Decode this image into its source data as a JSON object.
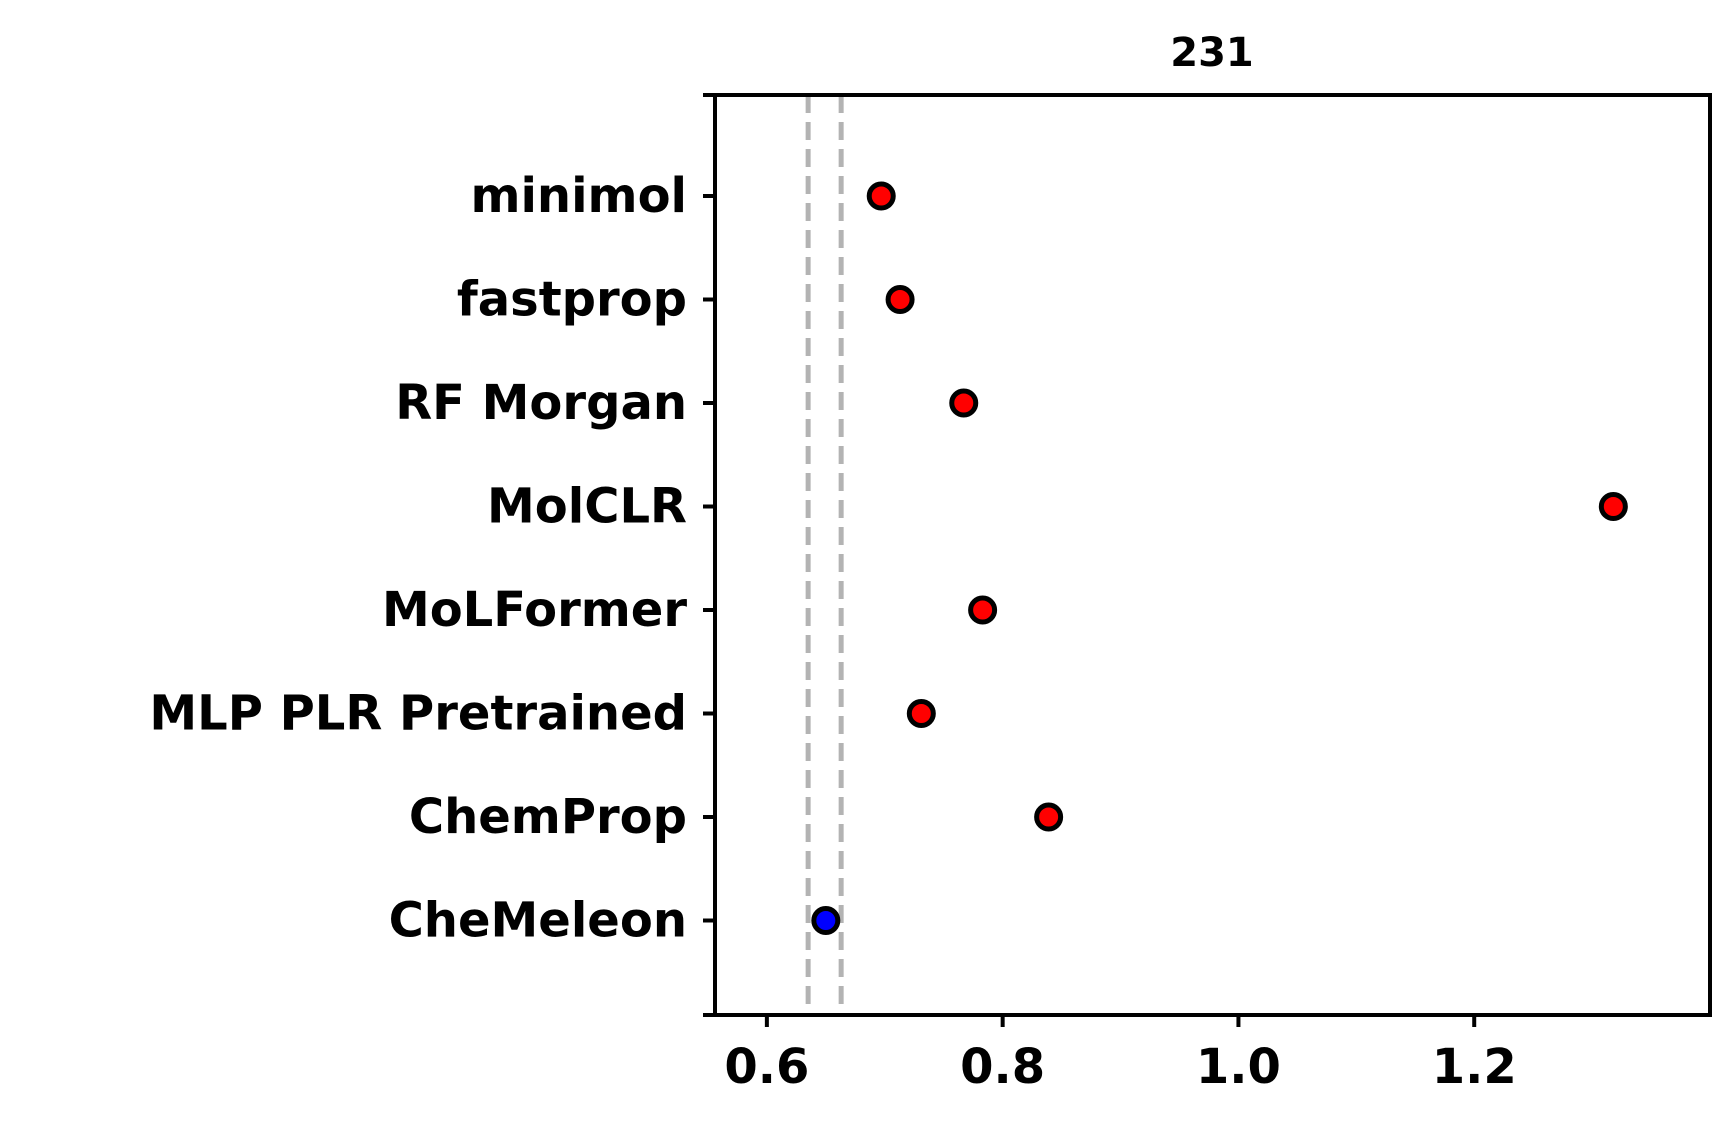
{
  "chart_data": {
    "type": "scatter",
    "title": "231",
    "xlabel": "",
    "ylabel": "",
    "xlim": [
      0.556,
      1.4
    ],
    "x_ticks": [
      0.6,
      0.8,
      1.0,
      1.2
    ],
    "x_tick_labels": [
      "0.6",
      "0.8",
      "1.0",
      "1.2"
    ],
    "categories": [
      "minimol",
      "fastprop",
      "RF Morgan",
      "MolCLR",
      "MoLFormer",
      "MLP PLR Pretrained",
      "ChemProp",
      "CheMeleon"
    ],
    "series": [
      {
        "points": [
          {
            "label": "minimol",
            "x": 0.697,
            "err": 0.006,
            "color": "#ff0000"
          },
          {
            "label": "fastprop",
            "x": 0.713,
            "err": 0.006,
            "color": "#ff0000"
          },
          {
            "label": "RF Morgan",
            "x": 0.767,
            "err": 0.006,
            "color": "#ff0000"
          },
          {
            "label": "MolCLR",
            "x": 1.318,
            "err": 0.006,
            "color": "#ff0000"
          },
          {
            "label": "MoLFormer",
            "x": 0.783,
            "err": 0.008,
            "color": "#ff0000"
          },
          {
            "label": "MLP PLR Pretrained",
            "x": 0.731,
            "err": 0.012,
            "color": "#ff0000"
          },
          {
            "label": "ChemProp",
            "x": 0.839,
            "err": 0.008,
            "color": "#ff0000"
          },
          {
            "label": "CheMeleon",
            "x": 0.65,
            "err": 0.0,
            "color": "#0000ff"
          }
        ]
      }
    ],
    "reference_lines": [
      0.635,
      0.663
    ],
    "reference_line_color": "#b3b3b3",
    "grid": false,
    "legend": "none"
  }
}
